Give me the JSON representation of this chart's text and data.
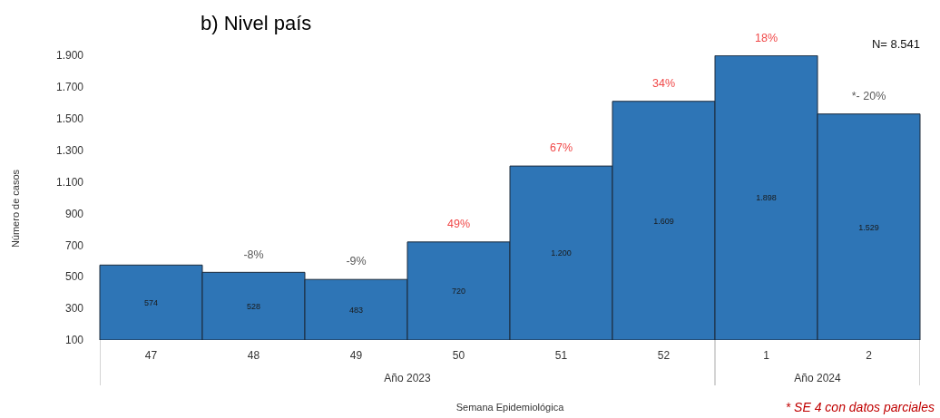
{
  "chart_data": {
    "type": "bar",
    "title": "b) Nivel país",
    "xlabel": "Semana Epidemiológica",
    "ylabel": "Número de casos",
    "categories": [
      "47",
      "48",
      "49",
      "50",
      "51",
      "52",
      "1",
      "2"
    ],
    "values": [
      574,
      528,
      483,
      720,
      1200,
      1609,
      1898,
      1529
    ],
    "value_labels": [
      "574",
      "528",
      "483",
      "720",
      "1.200",
      "1.609",
      "1.898",
      "1.529"
    ],
    "color": "#2e75b6",
    "ylim": [
      100,
      1900
    ],
    "yticks": [
      {
        "value": 100,
        "label": "100"
      },
      {
        "value": 300,
        "label": "300"
      },
      {
        "value": 500,
        "label": "500"
      },
      {
        "value": 700,
        "label": "700"
      },
      {
        "value": 900,
        "label": "900"
      },
      {
        "value": 1100,
        "label": "1.100"
      },
      {
        "value": 1300,
        "label": "1.300"
      },
      {
        "value": 1500,
        "label": "1.500"
      },
      {
        "value": 1700,
        "label": "1.700"
      },
      {
        "value": 1900,
        "label": "1.900"
      }
    ],
    "annotations": [
      {
        "text": "-8%",
        "x": "48",
        "y": 528
      },
      {
        "text": "-9%",
        "x": "49",
        "y": 483
      },
      {
        "text": "49%",
        "x": "50",
        "y": 720
      },
      {
        "text": "67%",
        "x": "51",
        "y": 1200
      },
      {
        "text": "34%",
        "x": "52",
        "y": 1609
      },
      {
        "text": "18%",
        "x": "1",
        "y": 1898
      },
      {
        "text": "*- 20%",
        "x": "2",
        "y": 1529
      },
      "Año 2023",
      "Año 2024",
      "N= 8.541",
      "* SE 4 con datos parciales"
    ]
  }
}
